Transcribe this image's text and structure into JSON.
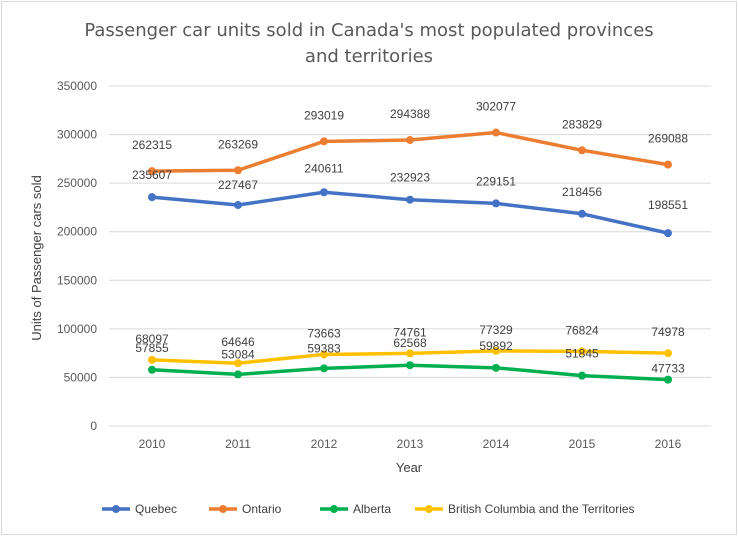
{
  "chart_data": {
    "type": "line",
    "title_lines": [
      "Passenger car units sold in Canada's most populated provinces",
      "and territories"
    ],
    "xlabel": "Year",
    "ylabel": "Units of Passenger cars sold",
    "categories": [
      "2010",
      "2011",
      "2012",
      "2013",
      "2014",
      "2015",
      "2016"
    ],
    "ylim": [
      0,
      350000
    ],
    "yticks": [
      0,
      50000,
      100000,
      150000,
      200000,
      250000,
      300000,
      350000
    ],
    "ytick_labels": [
      "0",
      "50000",
      "100000",
      "150000",
      "200000",
      "250000",
      "300000",
      "350000"
    ],
    "grid": true,
    "legend_position": "bottom",
    "series": [
      {
        "name": "Quebec",
        "color": "#4472c4",
        "values": [
          235607,
          227467,
          240611,
          232923,
          229151,
          218456,
          198551
        ]
      },
      {
        "name": "Ontario",
        "color": "#ed7d31",
        "values": [
          262315,
          263269,
          293019,
          294388,
          302077,
          283829,
          269088
        ]
      },
      {
        "name": "Alberta",
        "color": "#00b050",
        "values": [
          57855,
          53084,
          59383,
          62568,
          59892,
          51845,
          47733
        ]
      },
      {
        "name": "British Columbia and the Territories",
        "color": "#ffc000",
        "values": [
          68097,
          64646,
          73663,
          74761,
          77329,
          76824,
          74978
        ]
      }
    ]
  }
}
